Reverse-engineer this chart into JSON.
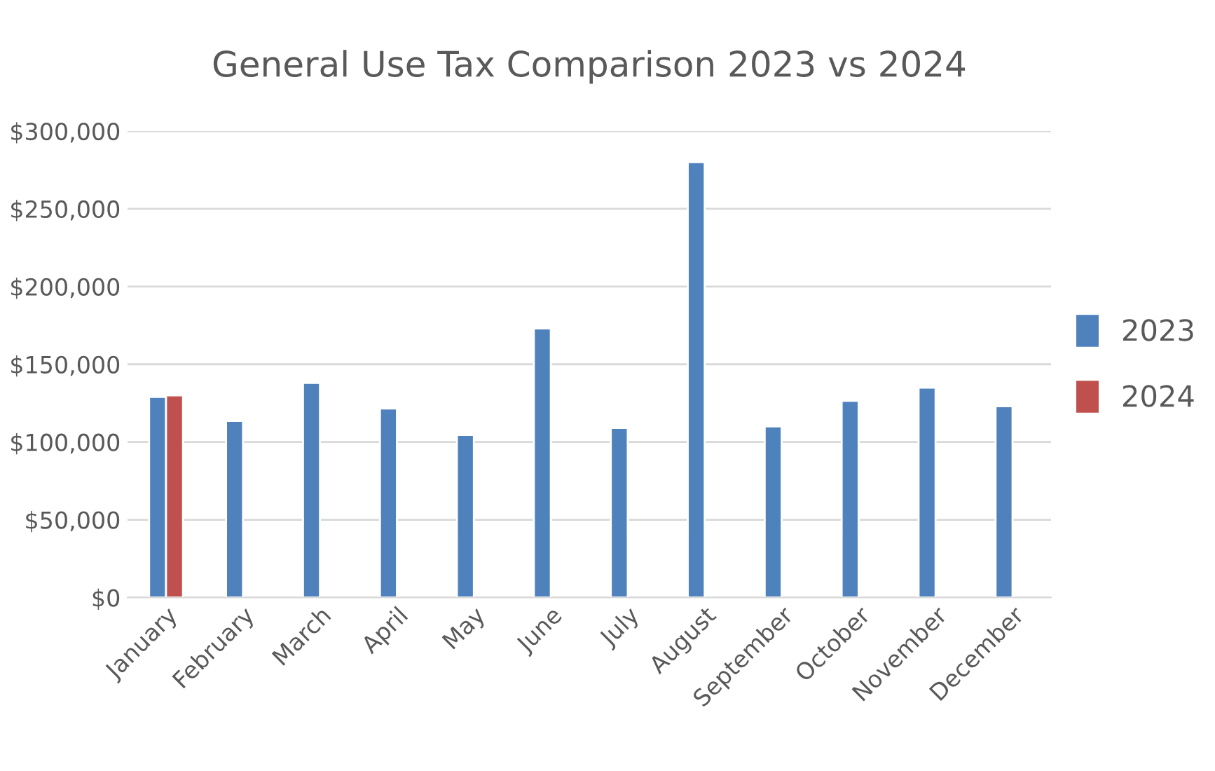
{
  "chart_data": {
    "type": "bar",
    "title": "General Use Tax Comparison 2023 vs 2024",
    "categories": [
      "January",
      "February",
      "March",
      "April",
      "May",
      "June",
      "July",
      "August",
      "September",
      "October",
      "November",
      "December"
    ],
    "series": [
      {
        "name": "2023",
        "color": "#4f81bd",
        "values": [
          129000,
          113500,
          138000,
          121500,
          104500,
          173000,
          109000,
          280000,
          110000,
          126500,
          135000,
          123000
        ]
      },
      {
        "name": "2024",
        "color": "#c0504d",
        "values": [
          130000,
          null,
          null,
          null,
          null,
          null,
          null,
          null,
          null,
          null,
          null,
          null
        ]
      }
    ],
    "ylim": [
      0,
      300000
    ],
    "yticks": [
      {
        "value": 0,
        "label": "$0"
      },
      {
        "value": 50000,
        "label": "$50,000"
      },
      {
        "value": 100000,
        "label": "$100,000"
      },
      {
        "value": 150000,
        "label": "$150,000"
      },
      {
        "value": 200000,
        "label": "$200,000"
      },
      {
        "value": 250000,
        "label": "$250,000"
      },
      {
        "value": 300000,
        "label": "$300,000"
      }
    ],
    "grid": "y",
    "legend": "right"
  }
}
